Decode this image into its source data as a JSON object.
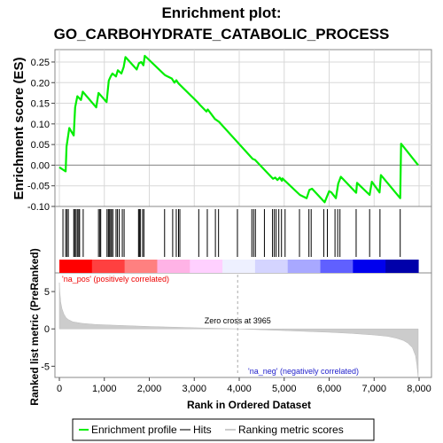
{
  "chart_data": {
    "type": "line",
    "title_line1": "Enrichment plot:",
    "title_line2": "GO_CARBOHYDRATE_CATABOLIC_PROCESS",
    "es_panel": {
      "ylabel": "Enrichment score (ES)",
      "ylim": [
        -0.1,
        0.28
      ],
      "yticks": [
        "-0.10",
        "-0.05",
        "0.00",
        "0.05",
        "0.10",
        "0.15",
        "0.20",
        "0.25"
      ],
      "ytick_values": [
        -0.1,
        -0.05,
        0.0,
        0.05,
        0.1,
        0.15,
        0.2,
        0.25
      ],
      "series_name": "Enrichment profile",
      "color": "#00ee00",
      "x": [
        0,
        140,
        160,
        220,
        320,
        350,
        400,
        480,
        520,
        820,
        870,
        1050,
        1100,
        1140,
        1180,
        1260,
        1300,
        1380,
        1430,
        1470,
        1720,
        1770,
        1820,
        1870,
        1900,
        2330,
        2350,
        2500,
        2560,
        2600,
        2650,
        3080,
        3120,
        3270,
        3300,
        3460,
        3550,
        4300,
        4350,
        4750,
        4800,
        4850,
        4900,
        4950,
        4960,
        5350,
        5500,
        5560,
        5620,
        5900,
        6000,
        6050,
        6150,
        6200,
        6260,
        6600,
        6620,
        6900,
        6950,
        7120,
        7150,
        7580,
        7600,
        7980
      ],
      "y": [
        -0.005,
        -0.015,
        0.045,
        0.09,
        0.072,
        0.14,
        0.167,
        0.158,
        0.178,
        0.14,
        0.175,
        0.153,
        0.205,
        0.215,
        0.222,
        0.215,
        0.23,
        0.222,
        0.238,
        0.262,
        0.232,
        0.247,
        0.25,
        0.242,
        0.265,
        0.22,
        0.218,
        0.21,
        0.2,
        0.206,
        0.198,
        0.152,
        0.147,
        0.13,
        0.135,
        0.112,
        0.105,
        0.015,
        0.013,
        -0.033,
        -0.03,
        -0.036,
        -0.03,
        -0.038,
        -0.032,
        -0.072,
        -0.08,
        -0.06,
        -0.057,
        -0.09,
        -0.063,
        -0.066,
        -0.08,
        -0.045,
        -0.028,
        -0.067,
        -0.043,
        -0.072,
        -0.04,
        -0.066,
        -0.024,
        -0.08,
        0.052,
        0.0
      ]
    },
    "hits": [
      80,
      140,
      170,
      200,
      320,
      340,
      370,
      400,
      430,
      450,
      530,
      870,
      900,
      920,
      1060,
      1090,
      1110,
      1140,
      1160,
      1190,
      1260,
      1290,
      1330,
      1400,
      1440,
      1760,
      1780,
      1800,
      1850,
      1880,
      2340,
      2520,
      2600,
      2650,
      2680,
      3100,
      3290,
      3470,
      3540,
      3960,
      4280,
      4320,
      4360,
      4560,
      4740,
      4780,
      4820,
      4880,
      4940,
      5020,
      5340,
      5550,
      5600,
      5880,
      5960,
      6130,
      6190,
      6240,
      6600,
      6900,
      7130,
      7580
    ],
    "ranked_panel": {
      "ylabel": "Ranked list metric (PreRanked)",
      "yticks": [
        "5",
        "0",
        "-5"
      ],
      "ytick_values": [
        5,
        0,
        -5
      ],
      "ylim": [
        -6.5,
        7.5
      ],
      "pos_label": "'na_pos' (positively correlated)",
      "neg_label": "'na_neg' (negatively correlated)",
      "zero_cross_label": "Zero cross at 3965",
      "zero_cross": 3965,
      "metric_x": [
        0,
        10,
        30,
        60,
        100,
        150,
        200,
        300,
        500,
        800,
        1200,
        2000,
        3000,
        3965,
        5000,
        6000,
        6500,
        7000,
        7300,
        7500,
        7650,
        7750,
        7850,
        7920,
        7950,
        7980
      ],
      "metric_y": [
        6.2,
        5.0,
        3.6,
        2.7,
        2.0,
        1.5,
        1.25,
        0.95,
        0.75,
        0.6,
        0.5,
        0.32,
        0.15,
        0.0,
        -0.22,
        -0.45,
        -0.6,
        -0.82,
        -1.0,
        -1.25,
        -1.55,
        -1.9,
        -2.5,
        -3.6,
        -4.8,
        -6.5
      ]
    },
    "xlabel": "Rank in Ordered Dataset",
    "xlim": [
      0,
      8200
    ],
    "xticks": [
      "0",
      "1,000",
      "2,000",
      "3,000",
      "4,000",
      "5,000",
      "6,000",
      "7,000",
      "8,000"
    ],
    "xtick_values": [
      0,
      1000,
      2000,
      3000,
      4000,
      5000,
      6000,
      7000,
      8000
    ],
    "n_genes": 7980,
    "heatmap_colors": [
      "#ff0000",
      "#ff4040",
      "#ff8080",
      "#ffb3e6",
      "#ffd0ff",
      "#eef0ff",
      "#d4d4ff",
      "#a8a8ff",
      "#6060ff",
      "#0000ee",
      "#0000aa"
    ],
    "legend": [
      {
        "label": "Enrichment profile",
        "color": "#00ee00"
      },
      {
        "label": "Hits",
        "color": "#777777"
      },
      {
        "label": "Ranking metric scores",
        "color": "#cccccc"
      }
    ]
  }
}
